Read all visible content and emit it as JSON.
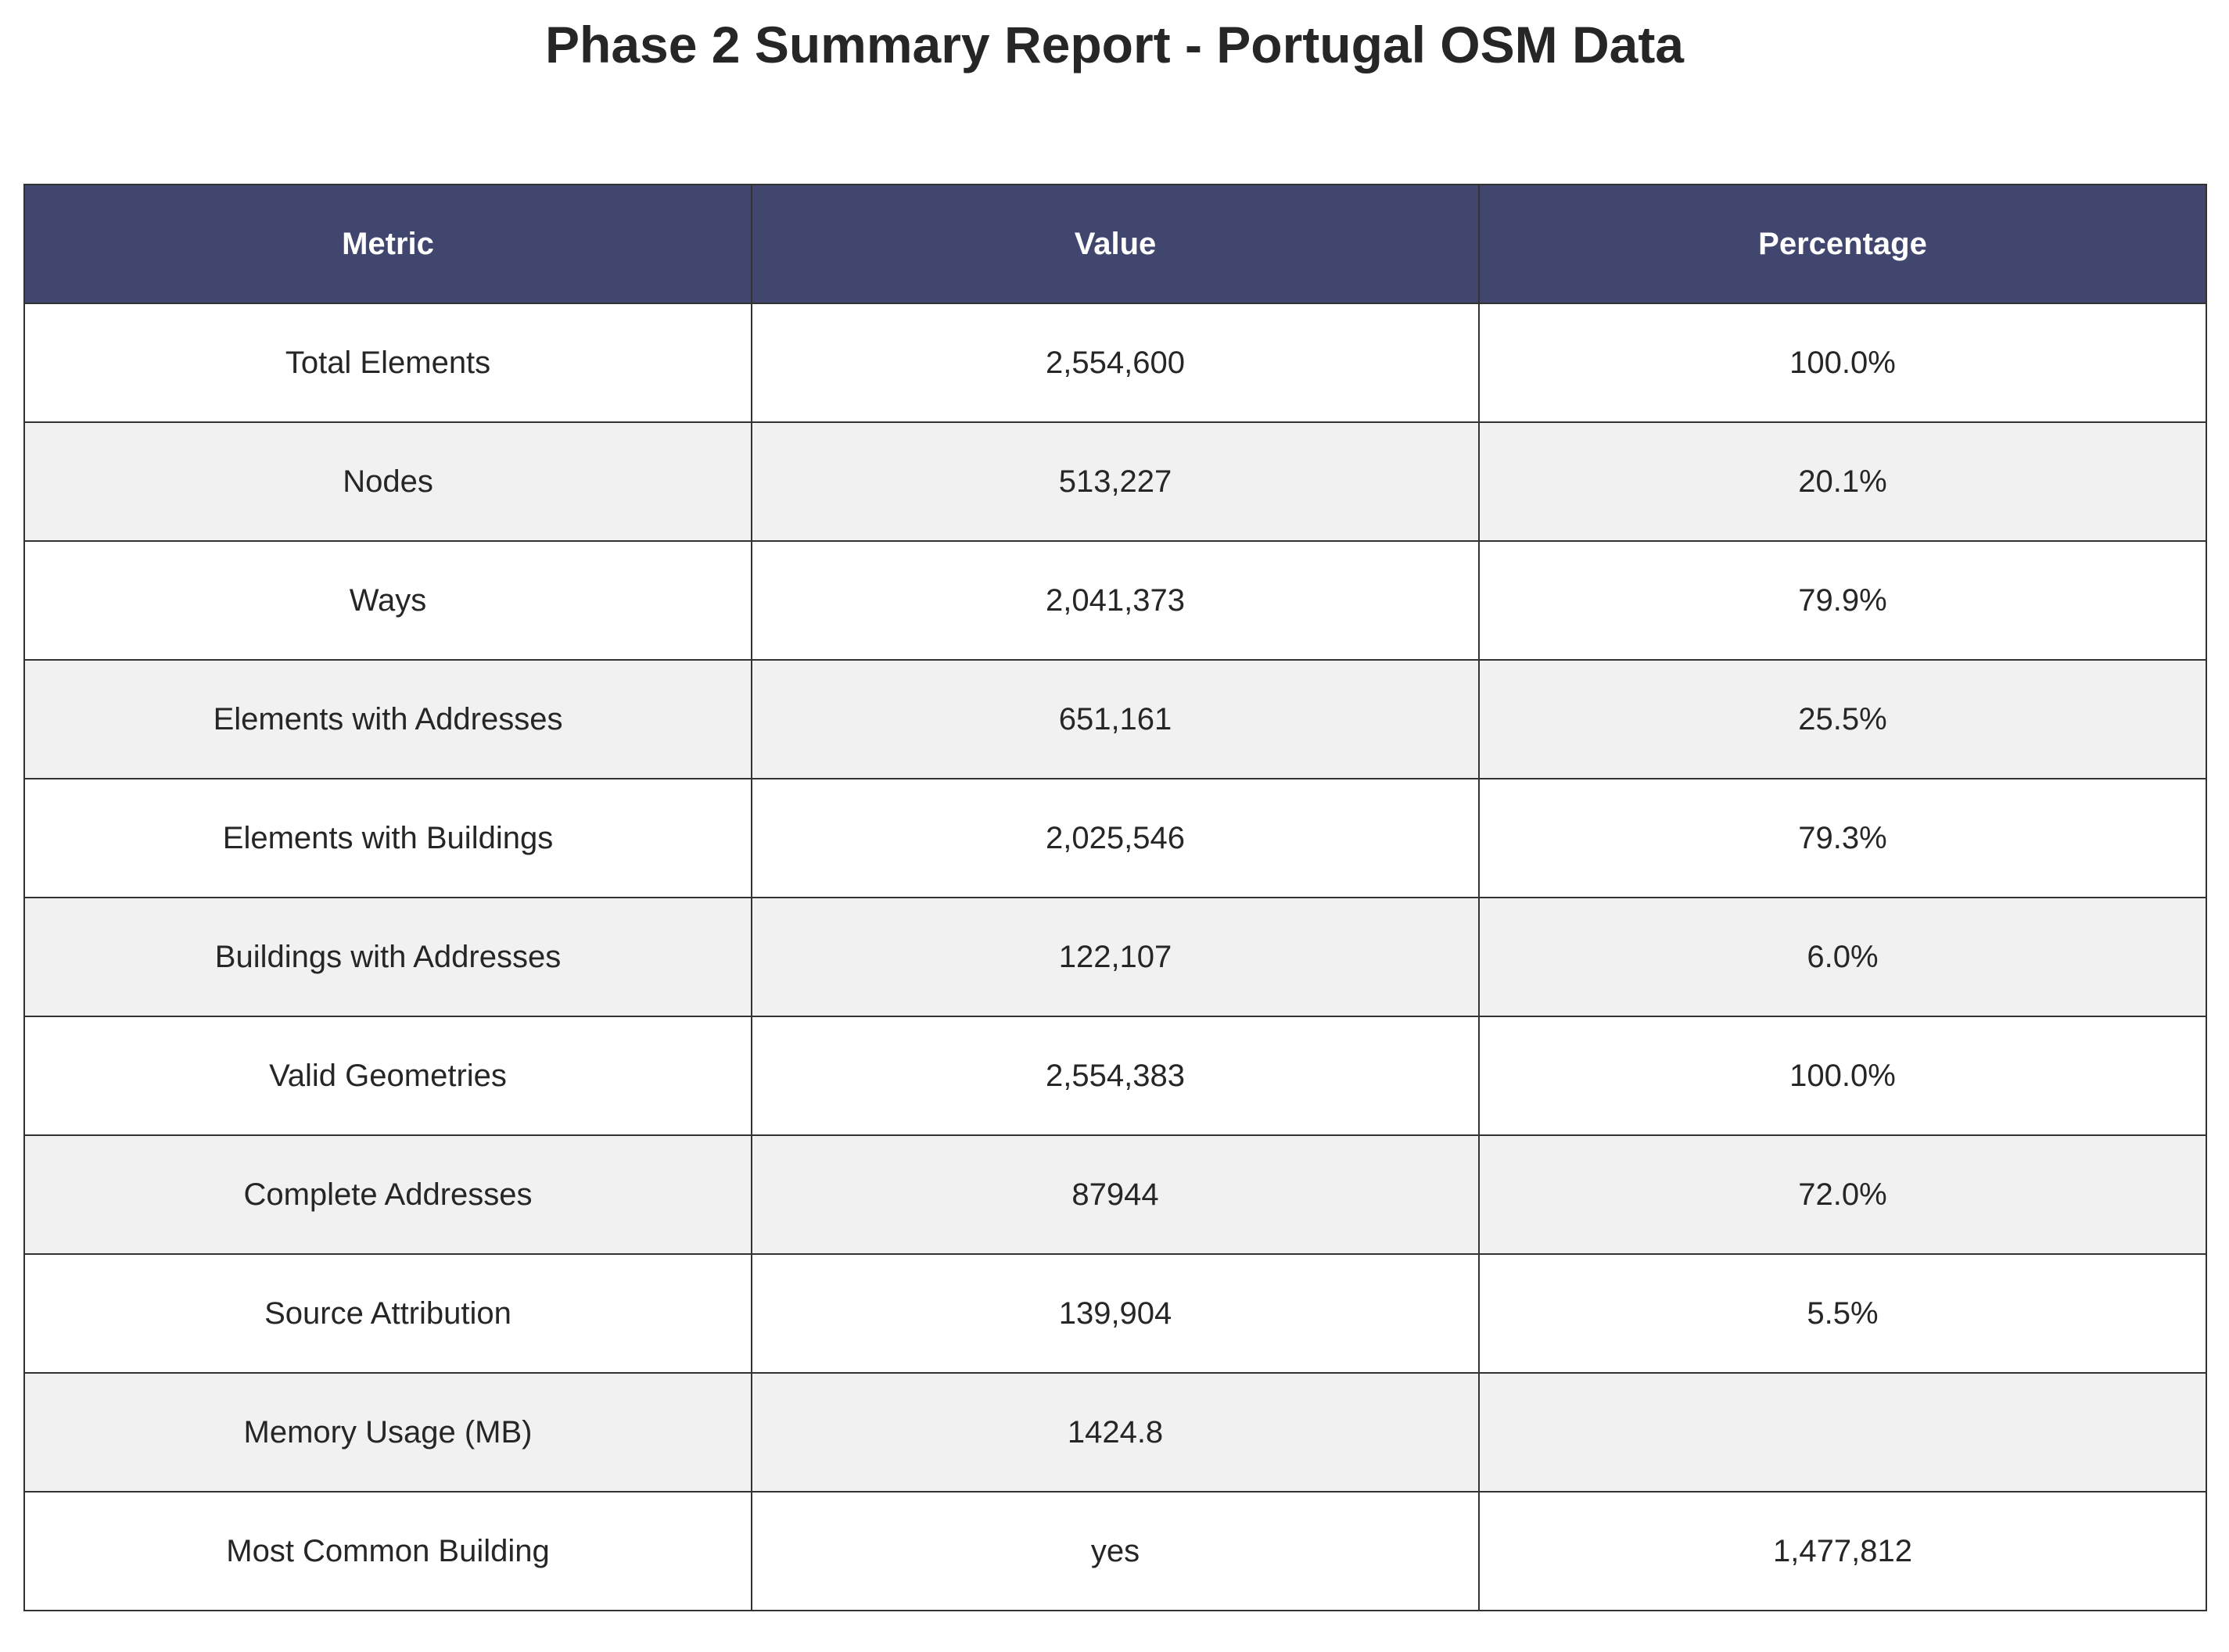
{
  "chart_data": {
    "type": "table",
    "title": "Phase 2 Summary Report - Portugal OSM Data",
    "columns": [
      "Metric",
      "Value",
      "Percentage"
    ],
    "rows": [
      [
        "Total Elements",
        "2,554,600",
        "100.0%"
      ],
      [
        "Nodes",
        "513,227",
        "20.1%"
      ],
      [
        "Ways",
        "2,041,373",
        "79.9%"
      ],
      [
        "Elements with Addresses",
        "651,161",
        "25.5%"
      ],
      [
        "Elements with Buildings",
        "2,025,546",
        "79.3%"
      ],
      [
        "Buildings with Addresses",
        "122,107",
        "6.0%"
      ],
      [
        "Valid Geometries",
        "2,554,383",
        "100.0%"
      ],
      [
        "Complete Addresses",
        "87944",
        "72.0%"
      ],
      [
        "Source Attribution",
        "139,904",
        "5.5%"
      ],
      [
        "Memory Usage (MB)",
        "1424.8",
        ""
      ],
      [
        "Most Common Building",
        "yes",
        "1,477,812"
      ]
    ]
  },
  "colors": {
    "header_bg": "#40466e",
    "header_text": "#ffffff",
    "row_alt_bg": "#f1f1f1",
    "row_bg": "#ffffff",
    "border": "#333333"
  }
}
